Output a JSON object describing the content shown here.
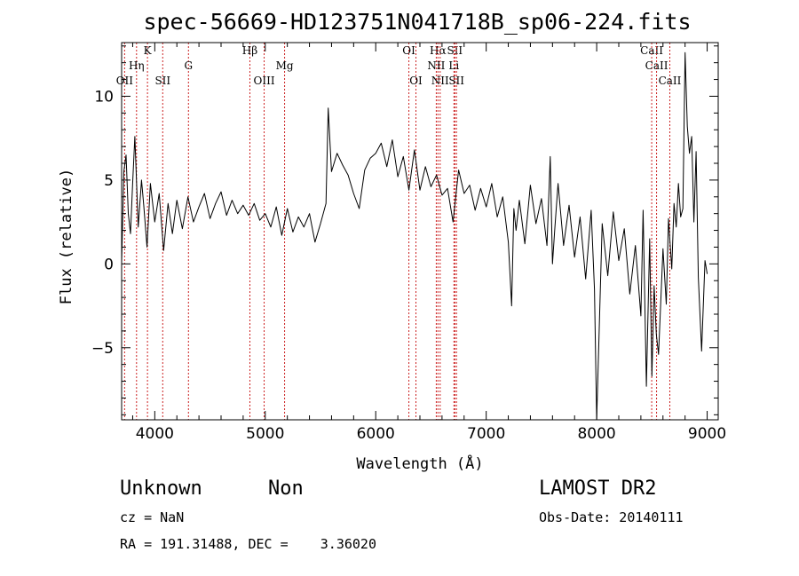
{
  "chart_data": {
    "type": "line",
    "title": "spec-56669-HD123751N041718B_sp06-224.fits",
    "xlabel": "Wavelength (Å)",
    "ylabel": "Flux (relative)",
    "xlim": [
      3700,
      9100
    ],
    "ylim": [
      -9.3,
      13.2
    ],
    "xticks": [
      4000,
      5000,
      6000,
      7000,
      8000,
      9000
    ],
    "yticks": [
      -5,
      0,
      5,
      10
    ],
    "series": [
      {
        "name": "flux",
        "color": "#000000",
        "x": [
          3700,
          3720,
          3740,
          3760,
          3780,
          3800,
          3820,
          3850,
          3880,
          3900,
          3930,
          3960,
          4000,
          4040,
          4080,
          4120,
          4160,
          4200,
          4250,
          4300,
          4350,
          4400,
          4450,
          4500,
          4550,
          4600,
          4650,
          4700,
          4750,
          4800,
          4850,
          4900,
          4950,
          5000,
          5050,
          5100,
          5150,
          5200,
          5250,
          5300,
          5350,
          5400,
          5450,
          5500,
          5550,
          5570,
          5600,
          5650,
          5700,
          5750,
          5800,
          5850,
          5900,
          5950,
          6000,
          6050,
          6100,
          6150,
          6200,
          6250,
          6300,
          6350,
          6400,
          6450,
          6500,
          6550,
          6600,
          6650,
          6700,
          6750,
          6800,
          6850,
          6900,
          6950,
          7000,
          7050,
          7100,
          7150,
          7200,
          7230,
          7250,
          7270,
          7300,
          7350,
          7400,
          7450,
          7500,
          7550,
          7580,
          7600,
          7620,
          7650,
          7700,
          7750,
          7800,
          7850,
          7900,
          7950,
          7980,
          8000,
          8050,
          8100,
          8150,
          8200,
          8250,
          8300,
          8350,
          8400,
          8420,
          8450,
          8480,
          8500,
          8520,
          8540,
          8560,
          8600,
          8630,
          8650,
          8680,
          8700,
          8720,
          8740,
          8760,
          8780,
          8800,
          8820,
          8840,
          8860,
          8880,
          8900,
          8920,
          8950,
          8980,
          9000
        ],
        "values": [
          0.1,
          5.5,
          6.5,
          3.0,
          1.8,
          4.8,
          7.6,
          2.2,
          5.0,
          3.5,
          1.0,
          4.8,
          2.5,
          4.2,
          0.8,
          3.6,
          1.8,
          3.8,
          2.1,
          4.0,
          2.5,
          3.4,
          4.2,
          2.7,
          3.6,
          4.3,
          2.9,
          3.8,
          3.0,
          3.5,
          2.9,
          3.6,
          2.6,
          3.0,
          2.2,
          3.4,
          1.7,
          3.3,
          1.9,
          2.8,
          2.2,
          3.0,
          1.3,
          2.4,
          3.6,
          9.3,
          5.5,
          6.6,
          5.9,
          5.3,
          4.2,
          3.3,
          5.6,
          6.3,
          6.6,
          7.2,
          5.8,
          7.4,
          5.2,
          6.4,
          4.4,
          6.8,
          4.4,
          5.8,
          4.6,
          5.3,
          4.1,
          4.5,
          2.5,
          5.6,
          4.2,
          4.7,
          3.2,
          4.5,
          3.4,
          4.8,
          2.8,
          4.0,
          1.3,
          -2.5,
          3.3,
          2.0,
          3.8,
          1.2,
          4.7,
          2.4,
          3.9,
          1.1,
          6.4,
          0.0,
          2.0,
          4.8,
          1.1,
          3.5,
          0.4,
          2.8,
          -0.9,
          3.2,
          -1.5,
          -9.3,
          2.4,
          -0.7,
          3.1,
          0.2,
          2.1,
          -1.8,
          1.1,
          -3.1,
          3.2,
          -7.3,
          1.5,
          -6.7,
          -1.3,
          -4.2,
          -5.4,
          0.9,
          -2.4,
          2.7,
          -0.3,
          3.6,
          2.2,
          4.8,
          2.8,
          3.3,
          12.6,
          8.2,
          6.6,
          7.6,
          2.5,
          6.7,
          -0.8,
          -5.2,
          0.2,
          -0.6
        ]
      }
    ],
    "lines": [
      {
        "label": "OII",
        "x": 3727,
        "row": 3
      },
      {
        "label": "Hη",
        "x": 3835,
        "row": 2
      },
      {
        "label": "K",
        "x": 3934,
        "row": 1
      },
      {
        "label": "SII",
        "x": 4072,
        "row": 3
      },
      {
        "label": "G",
        "x": 4305,
        "row": 2
      },
      {
        "label": "Hβ",
        "x": 4861,
        "row": 1
      },
      {
        "label": "OIII",
        "x": 4990,
        "row": 3
      },
      {
        "label": "Mg",
        "x": 5175,
        "row": 2
      },
      {
        "label": "OI",
        "x": 6300,
        "row": 1
      },
      {
        "label": "OI",
        "x": 6364,
        "row": 3
      },
      {
        "label": "Hα",
        "x": 6563,
        "row": 1
      },
      {
        "label": "NII",
        "x": 6548,
        "row": 2
      },
      {
        "label": "NII",
        "x": 6583,
        "row": 3
      },
      {
        "label": "SII",
        "x": 6716,
        "row": 1
      },
      {
        "label": "Li",
        "x": 6708,
        "row": 2
      },
      {
        "label": "SII",
        "x": 6731,
        "row": 3
      },
      {
        "label": "CaII",
        "x": 8498,
        "row": 1
      },
      {
        "label": "CaII",
        "x": 8542,
        "row": 2
      },
      {
        "label": "CaII",
        "x": 8662,
        "row": 3
      }
    ]
  },
  "info": {
    "object_class": "Unknown",
    "object_subclass": "Non",
    "survey": "LAMOST DR2",
    "redshift": "cz = NaN",
    "obs_date": "Obs-Date: 20140111",
    "coordinates": "RA = 191.31488, DEC =    3.36020"
  }
}
